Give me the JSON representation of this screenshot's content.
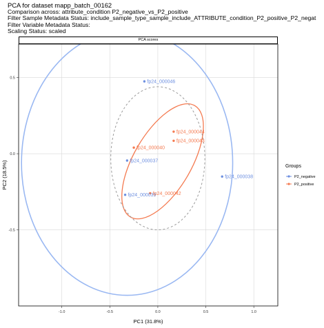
{
  "header": {
    "lines": [
      "PCA for dataset mapp_batch_00162",
      "Comparison across: attribute_condition P2_negative_vs_P2_positive",
      "Filter Sample Metadata Status: include_sample_type_sample_include_ATTRIBUTE_condition_P2_positive_P2_negat",
      "Filter Variable Metadata Status:",
      "Scaling Status: scaled"
    ]
  },
  "colors": {
    "P2_negative": "#6d8fe0",
    "P2_positive": "#f47a50",
    "grid": "#d8d8d8",
    "dashed": "#9a9a9a",
    "outer_circle": "#9ab8f2"
  },
  "chart_data": {
    "type": "scatter",
    "title": "PCA scores",
    "xlabel": "PC1 (31.8%)",
    "ylabel": "PC2 (18.5%)",
    "xlim": [
      -1.45,
      1.25
    ],
    "ylim": [
      -1.0,
      0.72
    ],
    "x_ticks": [
      -1.0,
      -0.5,
      0.0,
      0.5,
      1.0
    ],
    "x_tick_labels": [
      "-1.0",
      "-0.5",
      "0.0",
      "0.5",
      "1.0"
    ],
    "y_ticks": [
      -0.5,
      0.0,
      0.5
    ],
    "y_tick_labels": [
      "-0.5",
      "0.0",
      "0.5"
    ],
    "grid": true,
    "legend": {
      "title": "Groups",
      "placement": "right"
    },
    "series": [
      {
        "name": "P2_negative",
        "points": [
          {
            "label": "fp24_000046",
            "x": -0.14,
            "y": 0.475
          },
          {
            "label": "fp24_000037",
            "x": -0.32,
            "y": -0.045
          },
          {
            "label": "fp24_000039",
            "x": -0.34,
            "y": -0.27
          },
          {
            "label": "fp24_000038",
            "x": 0.67,
            "y": -0.15
          }
        ]
      },
      {
        "name": "P2_positive",
        "points": [
          {
            "label": "fp24_000044",
            "x": 0.165,
            "y": 0.145
          },
          {
            "label": "fp24_000043",
            "x": 0.165,
            "y": 0.085
          },
          {
            "label": "fp24_000040",
            "x": -0.25,
            "y": 0.04
          },
          {
            "label": "fp24_000042",
            "x": -0.08,
            "y": -0.26
          }
        ]
      }
    ],
    "ellipses": [
      {
        "group": "P2_negative",
        "cx": -0.32,
        "cy": -0.06,
        "rx": 1.1,
        "ry": 0.87,
        "angle": 0
      },
      {
        "group": "P2_positive",
        "cx": 0.05,
        "cy": -0.05,
        "rx": 0.67,
        "ry": 0.19,
        "angle": 60
      },
      {
        "group": "reference",
        "cx": 0.0,
        "cy": -0.03,
        "rx": 0.49,
        "ry": 0.47,
        "angle": 0,
        "style": "dashed"
      }
    ]
  }
}
